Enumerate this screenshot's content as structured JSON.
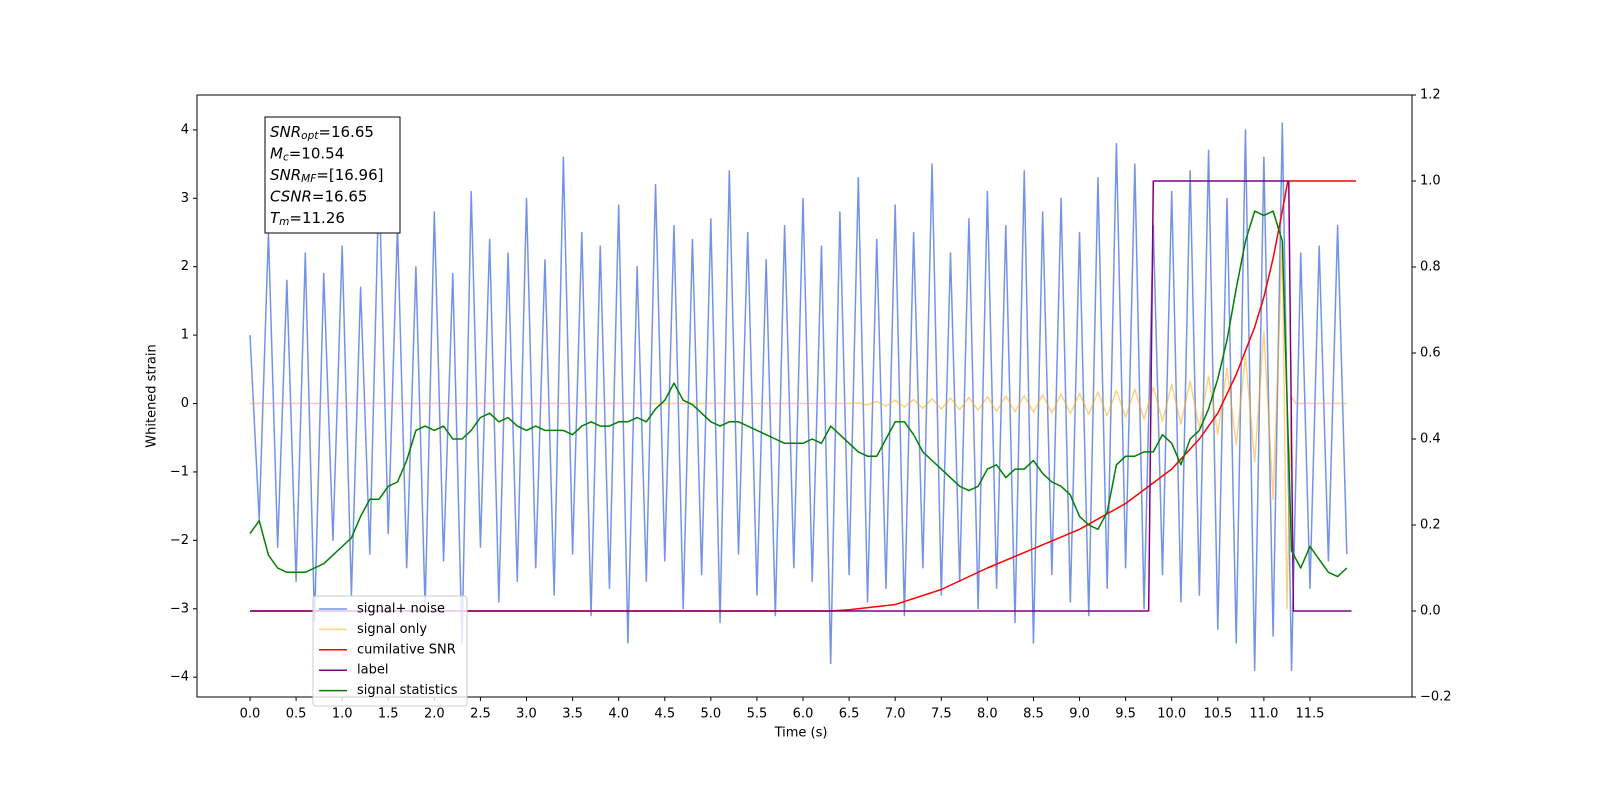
{
  "chart_data": {
    "type": "line",
    "xlabel": "Time (s)",
    "ylabel": "Whitened strain",
    "xlim": [
      -0.575,
      12.607
    ],
    "ylim": [
      -4.29,
      4.51
    ],
    "y2lim": [
      -0.2,
      1.2
    ],
    "xticks": [
      {
        "value": 0,
        "label": "0.0"
      },
      0.5,
      {
        "value": 1,
        "label": "1.0"
      },
      1.5,
      {
        "value": 2,
        "label": "2.0"
      },
      2.5,
      {
        "value": 3,
        "label": "3.0"
      },
      3.5,
      {
        "value": 4,
        "label": "4.0"
      },
      4.5,
      {
        "value": 5,
        "label": "5.0"
      },
      5.5,
      {
        "value": 6,
        "label": "6.0"
      },
      6.5,
      {
        "value": 7,
        "label": "7.0"
      },
      7.5,
      {
        "value": 8,
        "label": "8.0"
      },
      8.5,
      {
        "value": 9,
        "label": "9.0"
      },
      9.5,
      {
        "value": 10,
        "label": "10.0"
      },
      10.5,
      {
        "value": 11,
        "label": "11.0"
      },
      11.5
    ],
    "yticks": [
      {
        "value": -4,
        "label": "−4"
      },
      {
        "value": -3,
        "label": "−3"
      },
      {
        "value": -2,
        "label": "−2"
      },
      {
        "value": -1,
        "label": "−1"
      },
      0,
      1,
      2,
      3,
      4
    ],
    "y2ticks": [
      {
        "value": -0.2,
        "label": "−0.2"
      },
      {
        "value": 0,
        "label": "0.0"
      },
      0.2,
      0.4,
      0.6,
      0.8,
      {
        "value": 1,
        "label": "1.0"
      },
      1.2
    ],
    "grid": false,
    "legend_loc": "lower left",
    "x": [
      0,
      0.1,
      0.2,
      0.3,
      0.4,
      0.5,
      0.6,
      0.7,
      0.8,
      0.9,
      1,
      1.1,
      1.2,
      1.3,
      1.4,
      1.5,
      1.6,
      1.7,
      1.8,
      1.9,
      2,
      2.1,
      2.2,
      2.3,
      2.4,
      2.5,
      2.6,
      2.7,
      2.8,
      2.9,
      3,
      3.1,
      3.2,
      3.3,
      3.4,
      3.5,
      3.6,
      3.7,
      3.8,
      3.9,
      4,
      4.1,
      4.2,
      4.3,
      4.4,
      4.5,
      4.6,
      4.7,
      4.8,
      4.9,
      5,
      5.1,
      5.2,
      5.3,
      5.4,
      5.5,
      5.6,
      5.7,
      5.8,
      5.9,
      6,
      6.1,
      6.2,
      6.3,
      6.4,
      6.5,
      6.6,
      6.7,
      6.8,
      6.9,
      7,
      7.1,
      7.2,
      7.3,
      7.4,
      7.5,
      7.6,
      7.7,
      7.8,
      7.9,
      8,
      8.1,
      8.2,
      8.3,
      8.4,
      8.5,
      8.6,
      8.7,
      8.8,
      8.9,
      9,
      9.1,
      9.2,
      9.3,
      9.4,
      9.5,
      9.6,
      9.7,
      9.8,
      9.9,
      10,
      10.1,
      10.2,
      10.3,
      10.4,
      10.5,
      10.6,
      10.7,
      10.8,
      10.9,
      11,
      11.1,
      11.2,
      11.3,
      11.4,
      11.5,
      11.6,
      11.7,
      11.8,
      11.9
    ],
    "series": [
      {
        "name": "signal+ noise",
        "color": "#7593e6",
        "alpha": 1,
        "values": [
          1.0,
          -1.7,
          2.5,
          -2.1,
          1.8,
          -2.6,
          2.2,
          -3.2,
          1.9,
          -2.0,
          2.3,
          -2.8,
          1.7,
          -2.2,
          3.3,
          -1.9,
          2.6,
          -2.4,
          2.0,
          -3.0,
          2.8,
          -2.3,
          1.9,
          -3.5,
          3.1,
          -2.1,
          2.4,
          -2.9,
          2.2,
          -2.6,
          3.0,
          -2.4,
          2.1,
          -2.8,
          3.6,
          -2.2,
          2.5,
          -3.1,
          2.3,
          -2.7,
          2.9,
          -3.5,
          2.0,
          -2.6,
          3.2,
          -2.3,
          2.6,
          -3.0,
          2.4,
          -2.5,
          2.7,
          -3.2,
          3.4,
          -2.2,
          2.5,
          -2.8,
          2.1,
          -3.1,
          2.6,
          -2.4,
          3.0,
          -2.6,
          2.3,
          -3.8,
          2.8,
          -2.5,
          3.3,
          -2.9,
          2.4,
          -2.7,
          2.9,
          -3.1,
          2.5,
          -2.4,
          3.5,
          -2.8,
          2.2,
          -2.6,
          2.7,
          -3.0,
          3.1,
          -2.7,
          2.6,
          -3.2,
          3.4,
          -3.5,
          2.8,
          -2.5,
          3.0,
          -2.9,
          2.5,
          -3.1,
          3.3,
          -2.7,
          3.8,
          -2.4,
          3.5,
          -3.0,
          2.6,
          -2.5,
          3.1,
          -2.9,
          3.4,
          -2.8,
          3.7,
          -3.3,
          3.0,
          -3.5,
          4.0,
          -3.9,
          3.6,
          -3.4,
          4.1,
          -3.9,
          2.2,
          -2.7,
          2.3,
          -2.3,
          2.6,
          -2.2
        ]
      },
      {
        "name": "signal only",
        "color": "#ffa500",
        "alpha": 0.5,
        "x": [
          0,
          6.5,
          6.6,
          6.7,
          6.8,
          6.9,
          7,
          7.1,
          7.2,
          7.3,
          7.4,
          7.5,
          7.6,
          7.7,
          7.8,
          7.9,
          8,
          8.1,
          8.2,
          8.3,
          8.4,
          8.5,
          8.6,
          8.7,
          8.8,
          8.9,
          9,
          9.1,
          9.2,
          9.3,
          9.4,
          9.5,
          9.6,
          9.7,
          9.8,
          9.9,
          10,
          10.1,
          10.2,
          10.3,
          10.4,
          10.5,
          10.6,
          10.7,
          10.8,
          10.9,
          11,
          11.1,
          11.2,
          11.25,
          11.3,
          11.35,
          11.9
        ],
        "values": [
          0,
          0,
          0.01,
          -0.02,
          0.03,
          -0.04,
          0.05,
          -0.05,
          0.06,
          -0.07,
          0.07,
          -0.08,
          0.08,
          -0.09,
          0.09,
          -0.1,
          0.1,
          -0.11,
          0.11,
          -0.12,
          0.12,
          -0.13,
          0.13,
          -0.14,
          0.14,
          -0.15,
          0.15,
          -0.16,
          0.17,
          -0.18,
          0.19,
          -0.2,
          0.21,
          -0.23,
          0.24,
          -0.26,
          0.28,
          -0.3,
          0.33,
          -0.36,
          0.4,
          -0.45,
          0.52,
          -0.6,
          0.7,
          -0.85,
          1.05,
          -1.4,
          2.4,
          -3.0,
          0.1,
          0,
          0
        ]
      },
      {
        "name": "cumilative SNR",
        "color": "#ff0000",
        "alpha": 1,
        "axis": "y2",
        "x": [
          0,
          6.3,
          6.5,
          7,
          7.5,
          8,
          8.5,
          9,
          9.5,
          10,
          10.3,
          10.5,
          10.7,
          10.9,
          11,
          11.1,
          11.2,
          11.26,
          12
        ],
        "values": [
          0,
          0,
          0.003,
          0.015,
          0.05,
          0.1,
          0.145,
          0.19,
          0.25,
          0.33,
          0.4,
          0.46,
          0.55,
          0.66,
          0.73,
          0.82,
          0.93,
          1,
          1
        ]
      },
      {
        "name": "label",
        "color": "#800080",
        "alpha": 1,
        "axis": "y2",
        "x": [
          0,
          9.75,
          9.8,
          11.27,
          11.32,
          11.95
        ],
        "values": [
          0,
          0,
          1,
          1,
          0,
          0
        ]
      },
      {
        "name": "signal statistics",
        "color": "#008000",
        "alpha": 1,
        "axis": "y2",
        "values": [
          0.18,
          0.21,
          0.13,
          0.1,
          0.09,
          0.09,
          0.09,
          0.1,
          0.11,
          0.13,
          0.15,
          0.17,
          0.22,
          0.26,
          0.26,
          0.29,
          0.3,
          0.35,
          0.42,
          0.43,
          0.42,
          0.43,
          0.4,
          0.4,
          0.42,
          0.45,
          0.46,
          0.44,
          0.45,
          0.43,
          0.42,
          0.43,
          0.42,
          0.42,
          0.42,
          0.41,
          0.43,
          0.44,
          0.43,
          0.43,
          0.44,
          0.44,
          0.45,
          0.44,
          0.47,
          0.49,
          0.53,
          0.49,
          0.48,
          0.46,
          0.44,
          0.43,
          0.44,
          0.44,
          0.43,
          0.42,
          0.41,
          0.4,
          0.39,
          0.39,
          0.39,
          0.4,
          0.39,
          0.43,
          0.41,
          0.39,
          0.37,
          0.36,
          0.36,
          0.4,
          0.44,
          0.44,
          0.41,
          0.37,
          0.35,
          0.33,
          0.31,
          0.29,
          0.28,
          0.29,
          0.33,
          0.34,
          0.31,
          0.33,
          0.33,
          0.35,
          0.32,
          0.3,
          0.29,
          0.27,
          0.22,
          0.2,
          0.19,
          0.23,
          0.34,
          0.36,
          0.36,
          0.37,
          0.37,
          0.41,
          0.39,
          0.34,
          0.4,
          0.42,
          0.47,
          0.54,
          0.63,
          0.75,
          0.86,
          0.93,
          0.92,
          0.93,
          0.86,
          0.14,
          0.1,
          0.15,
          0.12,
          0.09,
          0.08,
          0.1
        ]
      }
    ],
    "annotation": [
      {
        "symbol": "SNR",
        "sub": "opt",
        "value": "=16.65"
      },
      {
        "symbol": "M",
        "sub": "c",
        "value": "=10.54"
      },
      {
        "symbol": "SNR",
        "sub": "MF",
        "value": "=[16.96]"
      },
      {
        "symbol": "CSNR",
        "value": "=16.65"
      },
      {
        "symbol": "T",
        "sub": "m",
        "value": "=11.26"
      }
    ]
  }
}
